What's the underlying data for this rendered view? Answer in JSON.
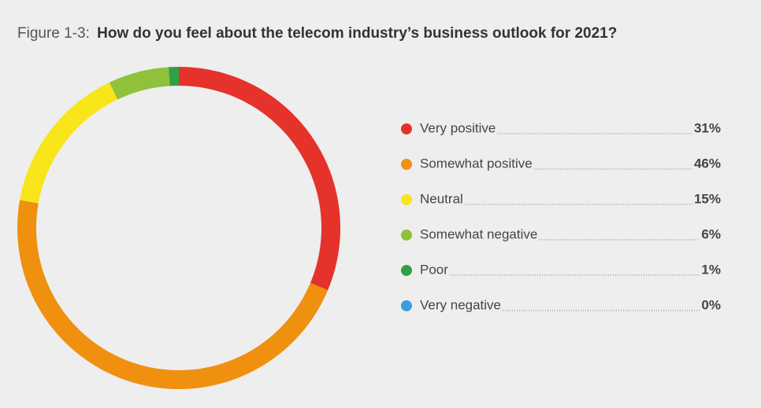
{
  "chart_data": {
    "type": "donut",
    "figure_label": "Figure 1-3:",
    "title": "How do you feel about the telecom industry’s business outlook for 2021?",
    "categories": [
      "Very positive",
      "Somewhat positive",
      "Neutral",
      "Somewhat negative",
      "Poor",
      "Very negative"
    ],
    "values": [
      31,
      46,
      15,
      6,
      1,
      0
    ],
    "value_labels": [
      "31%",
      "46%",
      "15%",
      "6%",
      "1%",
      "0%"
    ],
    "colors": [
      "#e5322b",
      "#f0900f",
      "#f8e51a",
      "#8fc13b",
      "#2fa046",
      "#3a9fdc"
    ],
    "legend": "right"
  }
}
